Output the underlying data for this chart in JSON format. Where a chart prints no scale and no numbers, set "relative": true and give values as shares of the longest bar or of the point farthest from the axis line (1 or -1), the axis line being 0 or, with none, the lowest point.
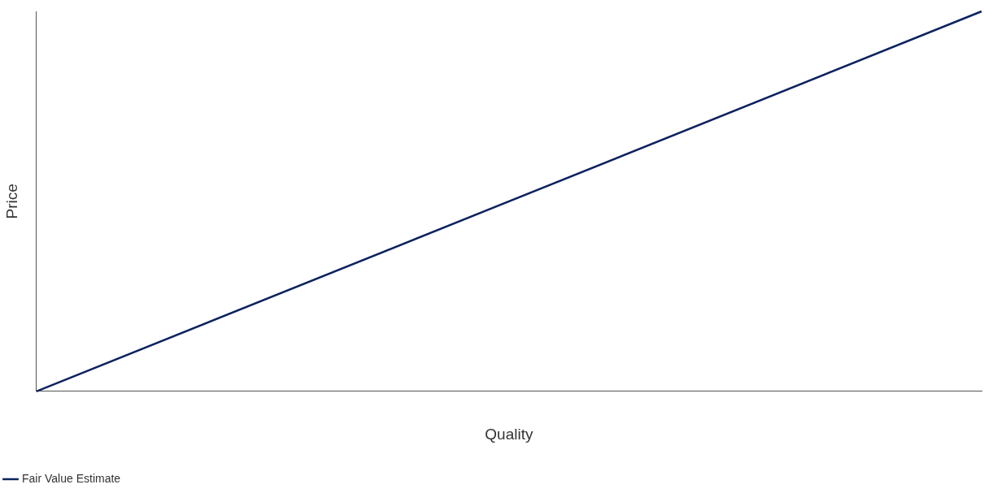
{
  "chart_data": {
    "type": "line",
    "relative": true,
    "xlabel": "Quality",
    "ylabel": "Price",
    "categories": [
      null,
      null
    ],
    "series": [
      {
        "name": "Fair Value Estimate",
        "color": "#0c2260",
        "values": [
          0,
          1
        ]
      }
    ],
    "legend": "bottom left",
    "grid": false,
    "marker": "none",
    "line_style": "solid"
  }
}
